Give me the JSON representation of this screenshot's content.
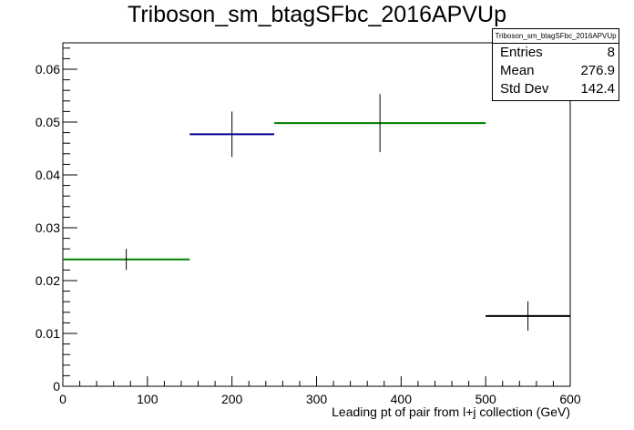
{
  "title": "Triboson_sm_btagSFbc_2016APVUp",
  "stats": {
    "name": "Triboson_sm_btagSFbc_2016APVUp",
    "entries_label": "Entries",
    "entries_value": "8",
    "mean_label": "Mean",
    "mean_value": "276.9",
    "stddev_label": "Std Dev",
    "stddev_value": "142.4"
  },
  "chart_data": {
    "type": "bar",
    "title": "Triboson_sm_btagSFbc_2016APVUp",
    "xlabel": "Leading pt of pair from l+j collection (GeV)",
    "ylabel": "",
    "xlim": [
      0,
      600
    ],
    "ylim": [
      0,
      0.065
    ],
    "x_ticks": [
      "0",
      "100",
      "200",
      "300",
      "400",
      "500",
      "600"
    ],
    "y_ticks": [
      "0",
      "0.01",
      "0.02",
      "0.03",
      "0.04",
      "0.05",
      "0.06"
    ],
    "grid": false,
    "bins": [
      {
        "x_low": 0,
        "x_high": 150,
        "center": 75,
        "value": 0.024,
        "err": 0.002,
        "color": "#008000"
      },
      {
        "x_low": 150,
        "x_high": 250,
        "center": 200,
        "value": 0.0477,
        "err": 0.0043,
        "color": "#000099"
      },
      {
        "x_low": 250,
        "x_high": 500,
        "center": 375,
        "value": 0.0498,
        "err": 0.0055,
        "color": "#008000"
      },
      {
        "x_low": 500,
        "x_high": 600,
        "center": 550,
        "value": 0.0133,
        "err": 0.0028,
        "color": "#000000"
      }
    ]
  }
}
